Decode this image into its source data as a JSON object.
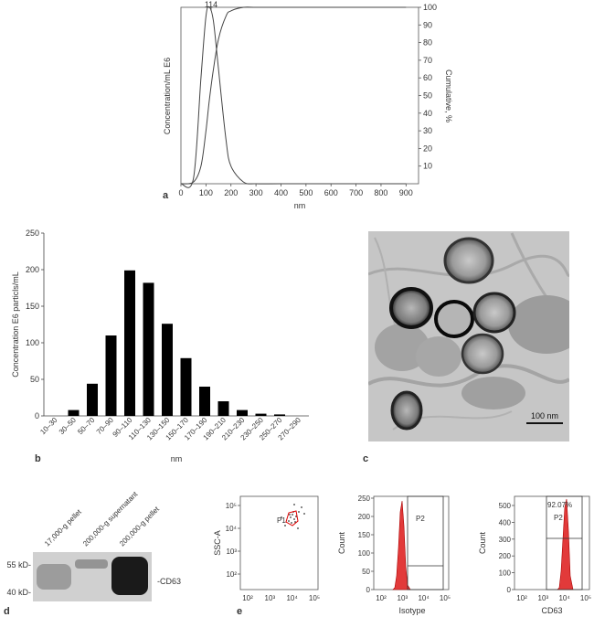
{
  "panel_a": {
    "letter": "a",
    "peak_label": "114",
    "left_ylabel": "Concentration/mL E6",
    "right_ylabel": "Cumulative, %",
    "xlabel": "nm",
    "x_ticks": [
      "0",
      "100",
      "200",
      "300",
      "400",
      "500",
      "600",
      "700",
      "800",
      "900"
    ],
    "right_ticks": [
      "10",
      "20",
      "30",
      "40",
      "50",
      "60",
      "70",
      "80",
      "90",
      "100"
    ]
  },
  "panel_b": {
    "letter": "b",
    "ylabel": "Concentration E6 particls/mL",
    "xlabel": "nm",
    "y_ticks": [
      "0",
      "50",
      "100",
      "150",
      "200",
      "250"
    ]
  },
  "panel_c": {
    "letter": "c",
    "scale_bar": "100 nm"
  },
  "panel_d": {
    "letter": "d",
    "lanes": [
      "17,000-g pellet",
      "200,000-g supernatant",
      "200,000-g pellet"
    ],
    "marker_top": "55 kD-",
    "marker_bottom": "40 kD-",
    "band_label": "-CD63"
  },
  "panel_e": {
    "letter": "e",
    "scatter": {
      "ylabel": "SSC-A",
      "gate": "P1",
      "y_ticks": [
        "10²",
        "10³",
        "10⁴",
        "10⁵"
      ],
      "x_ticks": [
        "10²",
        "10³",
        "10⁴",
        "10⁵"
      ]
    },
    "isotype": {
      "ylabel": "Count",
      "xlabel": "Isotype",
      "gate": "P2",
      "y_ticks": [
        "0",
        "50",
        "100",
        "150",
        "200",
        "250"
      ],
      "x_ticks": [
        "10²",
        "10³",
        "10⁴",
        "10⁵"
      ]
    },
    "cd63": {
      "ylabel": "Count",
      "xlabel": "CD63",
      "gate": "P2",
      "percent": "92.07%",
      "y_ticks": [
        "0",
        "100",
        "200",
        "300",
        "400",
        "500"
      ],
      "x_ticks": [
        "10²",
        "10³",
        "10⁴",
        "10⁵"
      ]
    }
  },
  "chart_data": [
    {
      "type": "line",
      "x": [
        0,
        50,
        80,
        100,
        114,
        130,
        150,
        180,
        200,
        250,
        300,
        400,
        600,
        900
      ],
      "series": [
        {
          "values": [
            0,
            3,
            60,
            95,
            100,
            92,
            65,
            25,
            10,
            1,
            0,
            0,
            0,
            0
          ]
        },
        {
          "values": [
            0,
            1,
            10,
            30,
            48,
            65,
            82,
            95,
            98,
            100,
            100,
            100,
            100,
            100
          ]
        }
      ],
      "xlabel": "nm",
      "ylabel": "Concentration/mL E6",
      "y2label": "Cumulative, %",
      "xlim": [
        0,
        950
      ],
      "y2lim": [
        0,
        100
      ],
      "annotations": [
        "114"
      ]
    },
    {
      "type": "bar",
      "categories": [
        "10–30",
        "30–50",
        "50–70",
        "70–90",
        "90–110",
        "110–130",
        "130–150",
        "150–170",
        "170–190",
        "190–210",
        "210–230",
        "230–250",
        "250–270",
        "270–290"
      ],
      "values": [
        0,
        8,
        44,
        110,
        199,
        182,
        126,
        79,
        40,
        20,
        8,
        3,
        2,
        0
      ],
      "xlabel": "nm",
      "ylabel": "Concentration E6 particls/mL",
      "ylim": [
        0,
        250
      ]
    }
  ]
}
